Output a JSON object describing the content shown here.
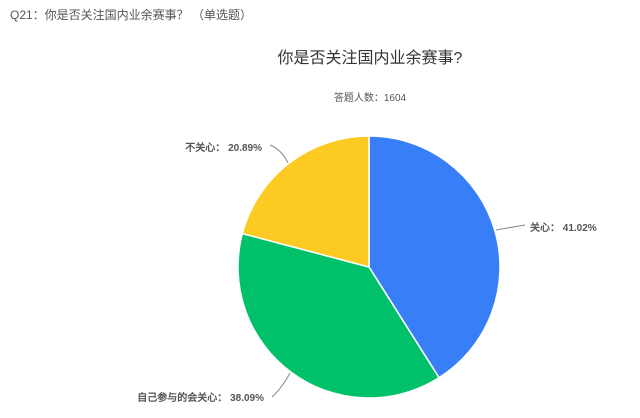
{
  "question": {
    "label": "Q21：你是否关注国内业余赛事？ （单选题）"
  },
  "chart_data": {
    "type": "pie",
    "title": "你是否关注国内业余赛事?",
    "subtitle": "答题人数：1604",
    "slices": [
      {
        "name": "关心",
        "value": 41.02,
        "label": "关心： 41.02%",
        "color": "#377ef7"
      },
      {
        "name": "自己参与的会关心",
        "value": 38.09,
        "label": "自己参与的会关心： 38.09%",
        "color": "#00c16a"
      },
      {
        "name": "不关心",
        "value": 20.89,
        "label": "不关心： 20.89%",
        "color": "#fdca24"
      }
    ],
    "start_angle": "12 o'clock, clockwise"
  }
}
